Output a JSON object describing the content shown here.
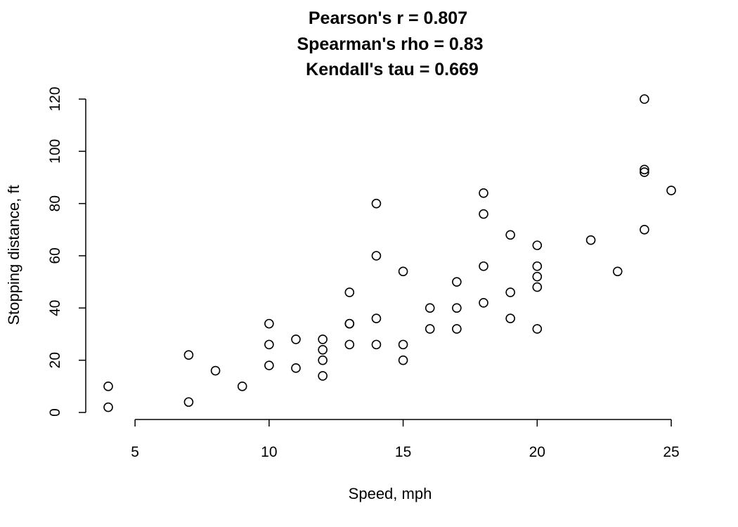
{
  "chart_data": {
    "type": "scatter",
    "title_lines": [
      "Pearson's r = 0.807",
      "Spearman's rho = 0.83",
      "Kendall's tau = 0.669"
    ],
    "xlabel": "Speed, mph",
    "ylabel": "Stopping distance, ft",
    "xlim": [
      4,
      25
    ],
    "ylim": [
      0,
      120
    ],
    "xticks": [
      5,
      10,
      15,
      20,
      25
    ],
    "yticks": [
      0,
      20,
      40,
      60,
      80,
      100,
      120
    ],
    "grid": false,
    "points": [
      {
        "x": 4,
        "y": 2
      },
      {
        "x": 4,
        "y": 10
      },
      {
        "x": 7,
        "y": 4
      },
      {
        "x": 7,
        "y": 22
      },
      {
        "x": 8,
        "y": 16
      },
      {
        "x": 9,
        "y": 10
      },
      {
        "x": 10,
        "y": 18
      },
      {
        "x": 10,
        "y": 26
      },
      {
        "x": 10,
        "y": 34
      },
      {
        "x": 11,
        "y": 17
      },
      {
        "x": 11,
        "y": 28
      },
      {
        "x": 12,
        "y": 14
      },
      {
        "x": 12,
        "y": 20
      },
      {
        "x": 12,
        "y": 24
      },
      {
        "x": 12,
        "y": 28
      },
      {
        "x": 13,
        "y": 26
      },
      {
        "x": 13,
        "y": 34
      },
      {
        "x": 13,
        "y": 34
      },
      {
        "x": 13,
        "y": 46
      },
      {
        "x": 14,
        "y": 26
      },
      {
        "x": 14,
        "y": 36
      },
      {
        "x": 14,
        "y": 60
      },
      {
        "x": 14,
        "y": 80
      },
      {
        "x": 15,
        "y": 20
      },
      {
        "x": 15,
        "y": 26
      },
      {
        "x": 15,
        "y": 54
      },
      {
        "x": 16,
        "y": 32
      },
      {
        "x": 16,
        "y": 40
      },
      {
        "x": 17,
        "y": 32
      },
      {
        "x": 17,
        "y": 40
      },
      {
        "x": 17,
        "y": 50
      },
      {
        "x": 18,
        "y": 42
      },
      {
        "x": 18,
        "y": 56
      },
      {
        "x": 18,
        "y": 76
      },
      {
        "x": 18,
        "y": 84
      },
      {
        "x": 19,
        "y": 36
      },
      {
        "x": 19,
        "y": 46
      },
      {
        "x": 19,
        "y": 68
      },
      {
        "x": 20,
        "y": 32
      },
      {
        "x": 20,
        "y": 48
      },
      {
        "x": 20,
        "y": 52
      },
      {
        "x": 20,
        "y": 56
      },
      {
        "x": 20,
        "y": 64
      },
      {
        "x": 22,
        "y": 66
      },
      {
        "x": 23,
        "y": 54
      },
      {
        "x": 24,
        "y": 70
      },
      {
        "x": 24,
        "y": 92
      },
      {
        "x": 24,
        "y": 93
      },
      {
        "x": 24,
        "y": 120
      },
      {
        "x": 25,
        "y": 85
      }
    ]
  }
}
